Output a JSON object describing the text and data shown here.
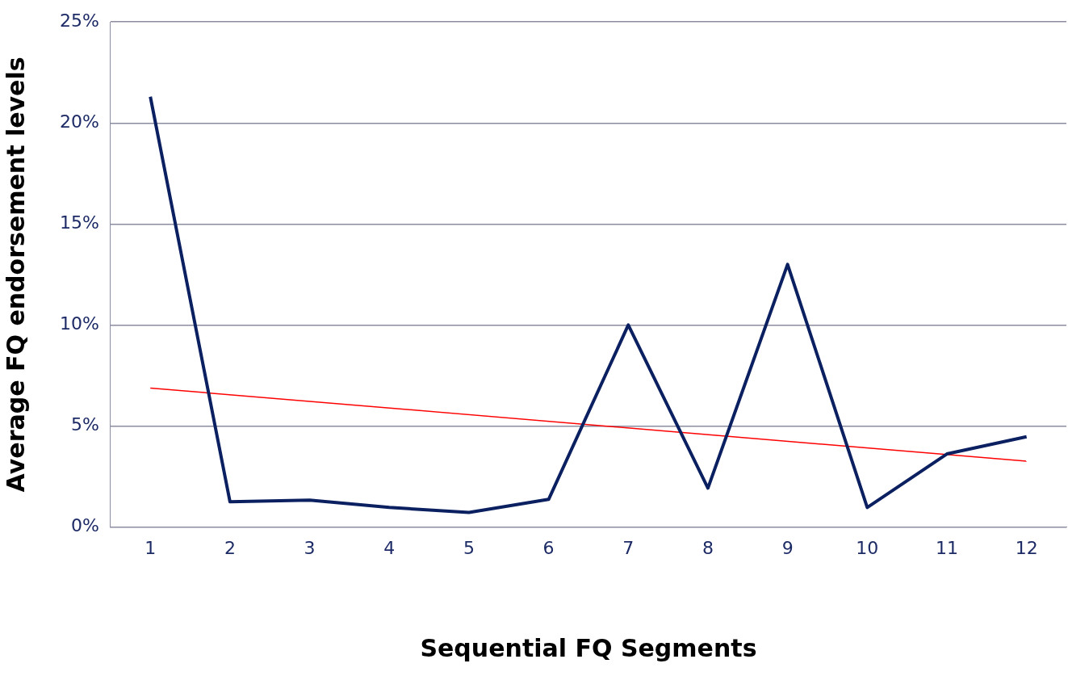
{
  "chart_data": {
    "type": "line",
    "xlabel": "Sequential FQ Segments",
    "ylabel": "Average FQ endorsement levels",
    "x": [
      1,
      2,
      3,
      4,
      5,
      6,
      7,
      8,
      9,
      10,
      11,
      12
    ],
    "xlim": [
      0.5,
      12.5
    ],
    "xticks": [
      1,
      2,
      3,
      4,
      5,
      6,
      7,
      8,
      9,
      10,
      11,
      12
    ],
    "ylim": [
      0,
      25
    ],
    "yticks": [
      {
        "value": 0,
        "label": "0%"
      },
      {
        "value": 5,
        "label": "5%"
      },
      {
        "value": 10,
        "label": "10%"
      },
      {
        "value": 15,
        "label": "15%"
      },
      {
        "value": 20,
        "label": "20%"
      },
      {
        "value": 25,
        "label": "25%"
      }
    ],
    "grid": "y",
    "legend": false,
    "marker": "none",
    "line_style": "solid",
    "series": [
      {
        "color": "#0b2060",
        "values": [
          21.3,
          1.25,
          1.33,
          0.97,
          0.72,
          1.37,
          10.0,
          1.93,
          13.0,
          0.97,
          3.62,
          4.47
        ]
      },
      {
        "color": "#ff0000",
        "x": [
          1,
          12
        ],
        "values": [
          6.88,
          3.26
        ]
      }
    ]
  }
}
